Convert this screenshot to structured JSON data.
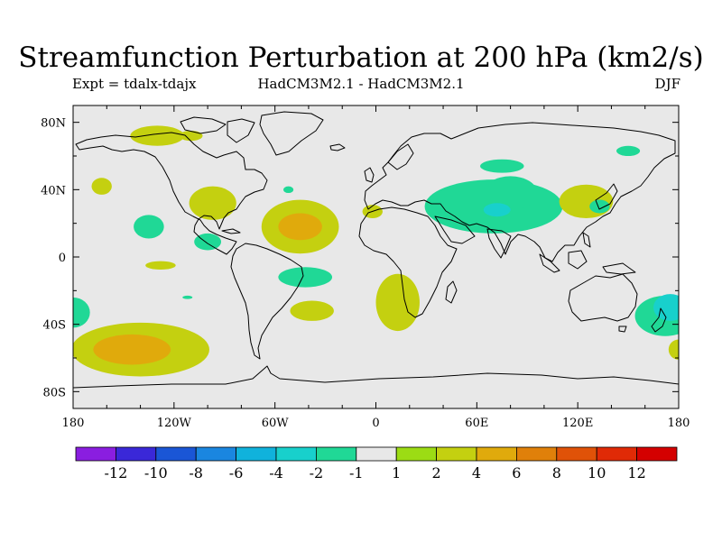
{
  "title": "Streamfunction Perturbation at 200 hPa (km2/s)",
  "expt_label": "Expt = tdalx-tdajx",
  "models_label": "HadCM3M2.1 - HadCM3M2.1",
  "season_label": "DJF",
  "map": {
    "background_color": "#e8e8e8",
    "lon_ticks": [
      "180",
      "120W",
      "60W",
      "0",
      "60E",
      "120E",
      "180"
    ],
    "lat_ticks": [
      "80N",
      "40N",
      "0",
      "40S",
      "80S"
    ],
    "lon_range": [
      -180,
      180
    ],
    "lat_range": [
      -90,
      90
    ]
  },
  "colorbar": {
    "labels": [
      "-12",
      "-10",
      "-8",
      "-6",
      "-4",
      "-2",
      "-1",
      "1",
      "2",
      "4",
      "6",
      "8",
      "10",
      "12"
    ],
    "colors": [
      "#8a1ee0",
      "#3a28d8",
      "#1a56d6",
      "#1a86e0",
      "#10b2dc",
      "#18d0cc",
      "#20d896",
      "#e8e8e8",
      "#9cdc14",
      "#c4d010",
      "#e0aa0c",
      "#e0800a",
      "#e05208",
      "#e02a06",
      "#d40000"
    ]
  },
  "anomalies": [
    {
      "lon": -130,
      "lat": 72,
      "rx": 16,
      "ry": 6,
      "level": "2"
    },
    {
      "lon": -110,
      "lat": 72,
      "rx": 7,
      "ry": 3,
      "level": "2"
    },
    {
      "lon": -163,
      "lat": 42,
      "rx": 6,
      "ry": 5,
      "level": "2"
    },
    {
      "lon": -97,
      "lat": 32,
      "rx": 14,
      "ry": 10,
      "level": "2"
    },
    {
      "lon": -52,
      "lat": 40,
      "rx": 3,
      "ry": 2,
      "level": "-1"
    },
    {
      "lon": -135,
      "lat": 18,
      "rx": 9,
      "ry": 7,
      "level": "-1"
    },
    {
      "lon": -100,
      "lat": 9,
      "rx": 8,
      "ry": 5,
      "level": "-1"
    },
    {
      "lon": -128,
      "lat": -5,
      "rx": 9,
      "ry": 2.5,
      "level": "2"
    },
    {
      "lon": -112,
      "lat": -24,
      "rx": 3,
      "ry": 1,
      "level": "-1"
    },
    {
      "lon": -45,
      "lat": 18,
      "rx": 23,
      "ry": 16,
      "level": "2"
    },
    {
      "lon": -45,
      "lat": 18,
      "rx": 13,
      "ry": 8,
      "level": "4"
    },
    {
      "lon": -42,
      "lat": -12,
      "rx": 16,
      "ry": 6,
      "level": "-1"
    },
    {
      "lon": -38,
      "lat": -32,
      "rx": 13,
      "ry": 6,
      "level": "2"
    },
    {
      "lon": -2,
      "lat": 27,
      "rx": 6,
      "ry": 4,
      "level": "2"
    },
    {
      "lon": 13,
      "lat": -27,
      "rx": 13,
      "ry": 17,
      "level": "2"
    },
    {
      "lon": 70,
      "lat": 30,
      "rx": 41,
      "ry": 16,
      "level": "-1"
    },
    {
      "lon": 80,
      "lat": 38,
      "rx": 16,
      "ry": 10,
      "level": "-1"
    },
    {
      "lon": 72,
      "lat": 28,
      "rx": 8,
      "ry": 4,
      "level": "-2"
    },
    {
      "lon": 75,
      "lat": 54,
      "rx": 13,
      "ry": 4,
      "level": "-1"
    },
    {
      "lon": 150,
      "lat": 63,
      "rx": 7,
      "ry": 3,
      "level": "-1"
    },
    {
      "lon": 125,
      "lat": 33,
      "rx": 16,
      "ry": 10,
      "level": "2"
    },
    {
      "lon": 133,
      "lat": 30,
      "rx": 6,
      "ry": 4,
      "level": "-1"
    },
    {
      "lon": 172,
      "lat": -35,
      "rx": 18,
      "ry": 12,
      "level": "-1"
    },
    {
      "lon": 175,
      "lat": -30,
      "rx": 10,
      "ry": 8,
      "level": "-2"
    },
    {
      "lon": 180,
      "lat": -55,
      "rx": 6,
      "ry": 6,
      "level": "2"
    },
    {
      "lon": -180,
      "lat": -33,
      "rx": 10,
      "ry": 9,
      "level": "-1"
    },
    {
      "lon": -140,
      "lat": -55,
      "rx": 41,
      "ry": 16,
      "level": "2"
    },
    {
      "lon": -145,
      "lat": -55,
      "rx": 23,
      "ry": 9,
      "level": "4"
    }
  ]
}
